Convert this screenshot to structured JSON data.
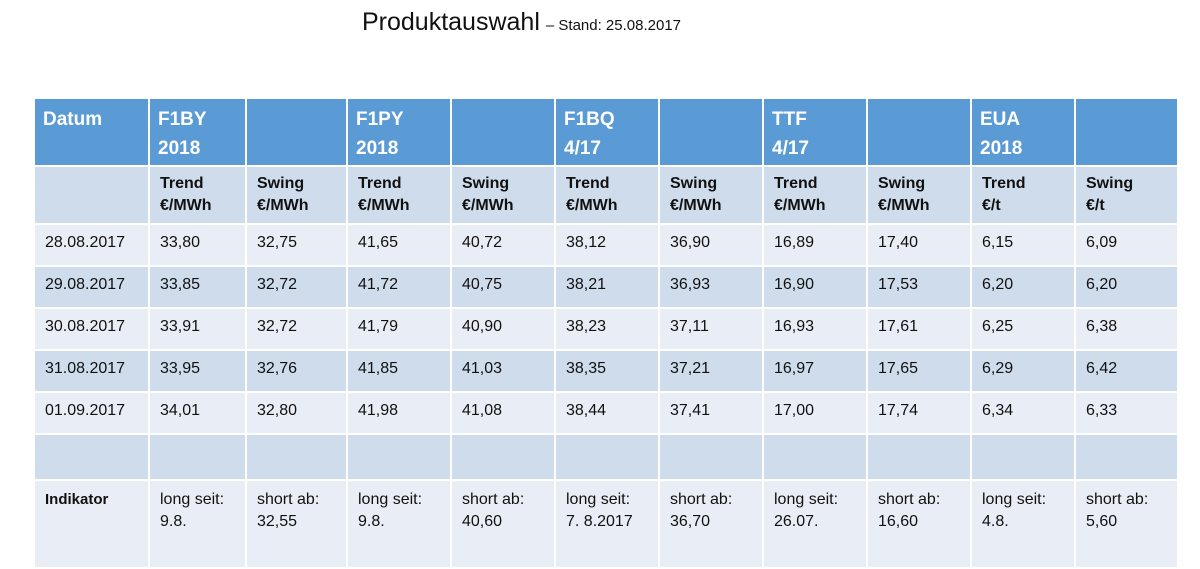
{
  "title": {
    "main": "Produktauswahl",
    "sub": "– Stand: 25.08.2017"
  },
  "table": {
    "header": [
      {
        "line1": "Datum",
        "line2": ""
      },
      {
        "line1": "F1BY",
        "line2": "2018"
      },
      {
        "line1": "",
        "line2": ""
      },
      {
        "line1": "F1PY",
        "line2": "2018"
      },
      {
        "line1": "",
        "line2": ""
      },
      {
        "line1": "F1BQ",
        "line2": "4/17"
      },
      {
        "line1": "",
        "line2": ""
      },
      {
        "line1": "TTF",
        "line2": "4/17"
      },
      {
        "line1": "",
        "line2": ""
      },
      {
        "line1": "EUA",
        "line2": "2018"
      },
      {
        "line1": "",
        "line2": ""
      }
    ],
    "subheader": [
      {
        "line1": "",
        "line2": ""
      },
      {
        "line1": "Trend",
        "line2": "€/MWh"
      },
      {
        "line1": "Swing",
        "line2": "€/MWh"
      },
      {
        "line1": "Trend",
        "line2": "€/MWh"
      },
      {
        "line1": "Swing",
        "line2": "€/MWh"
      },
      {
        "line1": "Trend",
        "line2": "€/MWh"
      },
      {
        "line1": "Swing",
        "line2": "€/MWh"
      },
      {
        "line1": "Trend",
        "line2": "€/MWh"
      },
      {
        "line1": "Swing",
        "line2": "€/MWh"
      },
      {
        "line1": "Trend",
        "line2": "€/t"
      },
      {
        "line1": "Swing",
        "line2": "€/t"
      }
    ],
    "rows": [
      [
        "28.08.2017",
        "33,80",
        "32,75",
        "41,65",
        "40,72",
        "38,12",
        "36,90",
        "16,89",
        "17,40",
        "6,15",
        "6,09"
      ],
      [
        "29.08.2017",
        "33,85",
        "32,72",
        "41,72",
        "40,75",
        "38,21",
        "36,93",
        "16,90",
        "17,53",
        "6,20",
        "6,20"
      ],
      [
        "30.08.2017",
        "33,91",
        "32,72",
        "41,79",
        "40,90",
        "38,23",
        "37,11",
        "16,93",
        "17,61",
        "6,25",
        "6,38"
      ],
      [
        "31.08.2017",
        "33,95",
        "32,76",
        "41,85",
        "41,03",
        "38,35",
        "37,21",
        "16,97",
        "17,65",
        "6,29",
        "6,42"
      ],
      [
        "01.09.2017",
        "34,01",
        "32,80",
        "41,98",
        "41,08",
        "38,44",
        "37,41",
        "17,00",
        "17,74",
        "6,34",
        "6,33"
      ]
    ],
    "indicator": [
      {
        "line1": "Indikator",
        "line2": ""
      },
      {
        "line1": "long seit:",
        "line2": "9.8."
      },
      {
        "line1": "short ab:",
        "line2": "32,55"
      },
      {
        "line1": "long seit:",
        "line2": "9.8."
      },
      {
        "line1": "short ab:",
        "line2": "40,60"
      },
      {
        "line1": "long seit:",
        "line2": "7. 8.2017"
      },
      {
        "line1": "short ab:",
        "line2": "36,70"
      },
      {
        "line1": "long seit:",
        "line2": "26.07."
      },
      {
        "line1": "short ab:",
        "line2": "16,60"
      },
      {
        "line1": "long seit:",
        "line2": "4.8."
      },
      {
        "line1": "short ab:",
        "line2": "5,60"
      }
    ]
  }
}
